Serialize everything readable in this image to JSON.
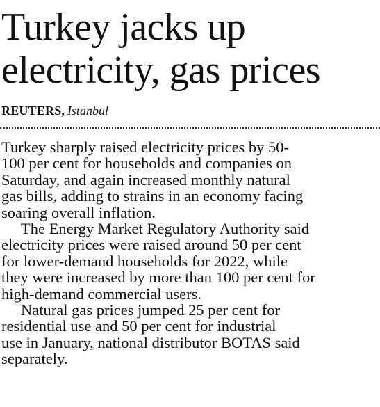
{
  "article": {
    "headline_line1": "Turkey jacks up",
    "headline_line2": "electricity, gas prices",
    "byline": {
      "agency": "REUTERS",
      "separator": ",",
      "dateline": "Istanbul"
    },
    "paragraphs": [
      {
        "lines": [
          "Turkey sharply raised electricity prices by 50-",
          "100 per cent for households and companies on",
          "Saturday, and again increased monthly natural",
          "gas bills, adding to strains in an economy facing",
          "soaring overall inflation."
        ]
      },
      {
        "lines": [
          "The Energy Market Regulatory Authority said",
          "electricity prices were raised around 50 per cent",
          "for lower-demand households for 2022, while",
          "they were increased by more than 100 per cent for",
          "high-demand commercial users."
        ]
      },
      {
        "lines": [
          "Natural gas prices jumped 25 per cent for",
          "residential use and 50 per cent for industrial",
          "use in January, national distributor BOTAS said",
          "separately."
        ]
      }
    ]
  }
}
